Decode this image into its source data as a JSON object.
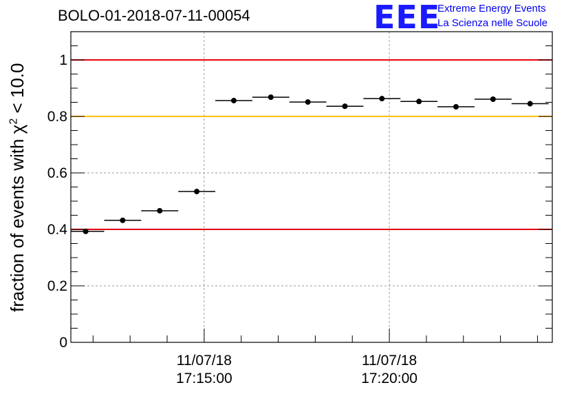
{
  "header": {
    "title": "BOLO-01-2018-07-11-00054",
    "logo_mark": "EEE",
    "logo_line1": "Extreme Energy Events",
    "logo_line2": "La Scienza nelle Scuole"
  },
  "chart_data": {
    "type": "scatter",
    "title": "BOLO-01-2018-07-11-00054",
    "xlabel": "",
    "ylabel": "fraction of events with χ² < 10.0",
    "ylabel_base": "fraction of events with χ",
    "ylabel_sup": "2",
    "ylabel_tail": " < 10.0",
    "x_unit": "minutes",
    "xlim": [
      -3.6,
      9.4
    ],
    "ylim": [
      0,
      1.1
    ],
    "y_ticks": [
      "0",
      "0.2",
      "0.4",
      "0.6",
      "0.8",
      "1"
    ],
    "y_tick_values": [
      0,
      0.2,
      0.4,
      0.6,
      0.8,
      1
    ],
    "x_major_ticks": [
      {
        "value": 0,
        "date": "11/07/18",
        "time": "17:15:00"
      },
      {
        "value": 5,
        "date": "11/07/18",
        "time": "17:20:00"
      }
    ],
    "x_minor_step": 1,
    "grid": true,
    "reference_lines": [
      {
        "value": 1.0,
        "color": "#e8000b"
      },
      {
        "value": 0.8,
        "color": "#ffc000"
      },
      {
        "value": 0.4,
        "color": "#e8000b"
      }
    ],
    "bin_width": 1,
    "points": [
      {
        "x": -3.2,
        "y": 0.393
      },
      {
        "x": -2.2,
        "y": 0.432
      },
      {
        "x": -1.2,
        "y": 0.466
      },
      {
        "x": -0.2,
        "y": 0.534
      },
      {
        "x": 0.8,
        "y": 0.856
      },
      {
        "x": 1.8,
        "y": 0.868
      },
      {
        "x": 2.8,
        "y": 0.851
      },
      {
        "x": 3.8,
        "y": 0.836
      },
      {
        "x": 4.8,
        "y": 0.863
      },
      {
        "x": 5.8,
        "y": 0.853
      },
      {
        "x": 6.8,
        "y": 0.834
      },
      {
        "x": 7.8,
        "y": 0.861
      },
      {
        "x": 8.8,
        "y": 0.845
      }
    ],
    "marker_color": "#000000"
  }
}
